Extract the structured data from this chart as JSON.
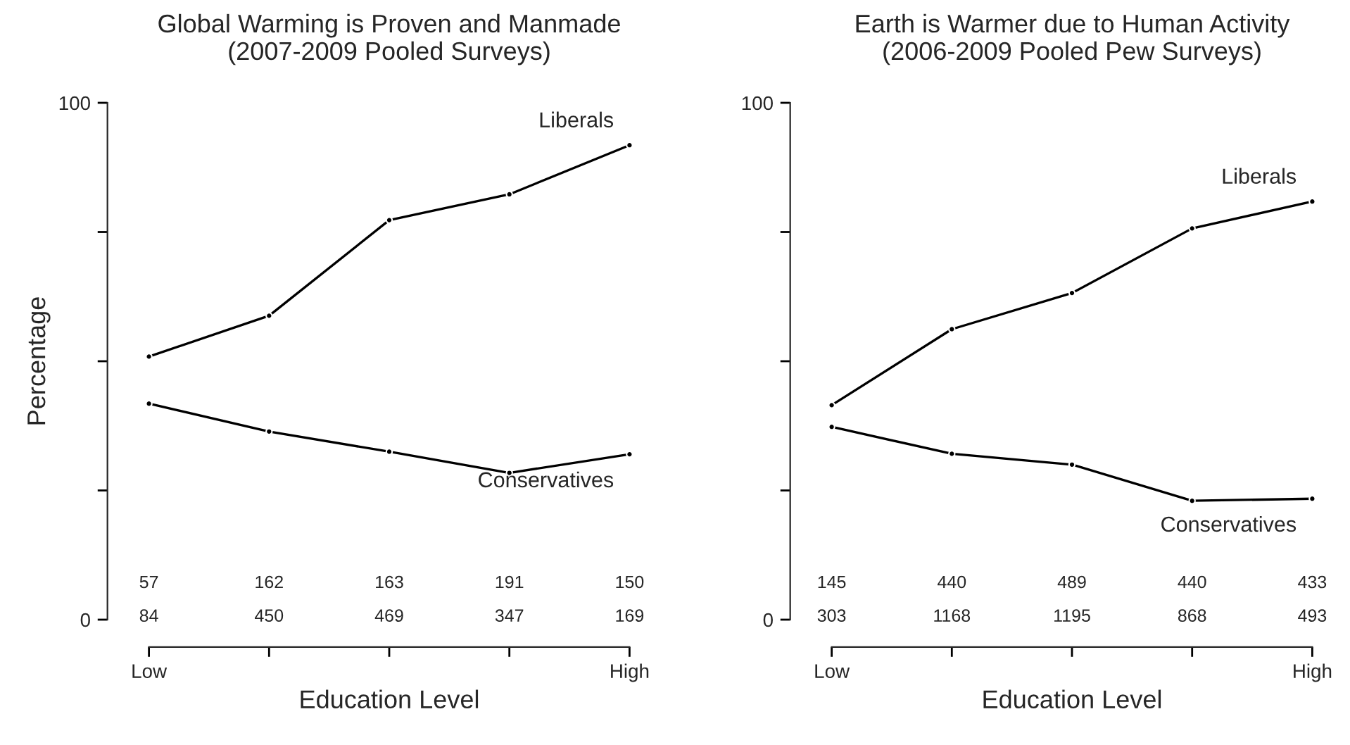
{
  "chart_data": [
    {
      "type": "line",
      "title": "Global Warming is Proven and Manmade",
      "subtitle": "(2007-2009 Pooled Surveys)",
      "xlabel": "Education Level",
      "ylabel": "Percentage",
      "categories": [
        "Low",
        null,
        null,
        null,
        "High"
      ],
      "ylim": [
        0,
        100
      ],
      "yticks": [
        0,
        {
          "value": 25,
          "label": null
        },
        {
          "value": 50,
          "label": null
        },
        {
          "value": 75,
          "label": null
        },
        100
      ],
      "marker": "circle",
      "line_style": "solid",
      "grid": false,
      "legend": false,
      "series": [
        {
          "name": "Liberals",
          "color": "#000000",
          "values": [
            50.9,
            58.8,
            77.3,
            82.3,
            91.8
          ]
        },
        {
          "name": "Conservatives",
          "color": "#000000",
          "values": [
            41.8,
            36.4,
            32.5,
            28.4,
            32
          ]
        }
      ],
      "annotations": [
        "57",
        "162",
        "163",
        "191",
        "150",
        "84",
        "450",
        "469",
        "347",
        "169"
      ]
    },
    {
      "type": "line",
      "title": "Earth is Warmer due to Human Activity",
      "subtitle": "(2006-2009 Pooled Pew Surveys)",
      "xlabel": "Education Level",
      "categories": [
        "Low",
        null,
        null,
        null,
        "High"
      ],
      "ylim": [
        0,
        100
      ],
      "yticks": [
        0,
        {
          "value": 25,
          "label": null
        },
        {
          "value": 50,
          "label": null
        },
        {
          "value": 75,
          "label": null
        },
        100
      ],
      "marker": "circle",
      "line_style": "solid",
      "grid": false,
      "legend": false,
      "series": [
        {
          "name": "Liberals",
          "color": "#000000",
          "values": [
            41.5,
            56.2,
            63.2,
            75.7,
            80.9
          ]
        },
        {
          "name": "Conservatives",
          "color": "#000000",
          "values": [
            37.3,
            32.1,
            30,
            23,
            23.4
          ]
        }
      ],
      "annotations": [
        "145",
        "440",
        "489",
        "440",
        "433",
        "303",
        "1168",
        "1195",
        "868",
        "493"
      ]
    }
  ]
}
